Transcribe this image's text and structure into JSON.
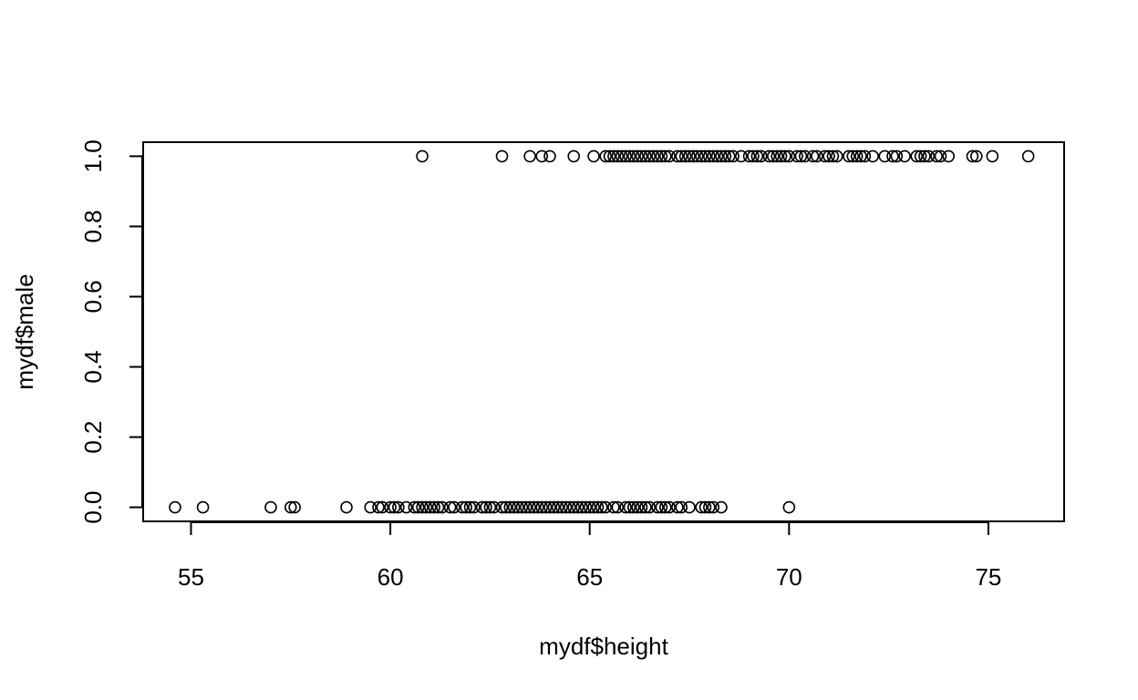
{
  "chart_data": {
    "type": "scatter",
    "title": "",
    "xlabel": "mydf$height",
    "ylabel": "mydf$male",
    "xlim": [
      53.8,
      76.9
    ],
    "ylim": [
      -0.04,
      1.04
    ],
    "x_ticks": [
      55,
      60,
      65,
      70,
      75
    ],
    "x_tick_labels": [
      "55",
      "60",
      "65",
      "70",
      "75"
    ],
    "y_ticks": [
      0.0,
      0.2,
      0.4,
      0.6,
      0.8,
      1.0
    ],
    "y_tick_labels": [
      "0.0",
      "0.2",
      "0.4",
      "0.6",
      "0.8",
      "1.0"
    ],
    "grid": false,
    "legend": "none",
    "marker": "open-circle",
    "colors": {
      "marker": "#000000",
      "axis": "#000000",
      "background": "#ffffff"
    },
    "series": [
      {
        "y": 0,
        "x": [
          54.6,
          55.3,
          57.0,
          57.5,
          57.6,
          58.9,
          59.5,
          59.7,
          59.8,
          60.0,
          60.1,
          60.2,
          60.4,
          60.6,
          60.7,
          60.8,
          60.9,
          61.0,
          61.1,
          61.2,
          61.3,
          61.5,
          61.6,
          61.8,
          61.9,
          62.0,
          62.1,
          62.3,
          62.4,
          62.5,
          62.6,
          62.8,
          62.9,
          63.0,
          63.1,
          63.2,
          63.3,
          63.4,
          63.5,
          63.6,
          63.7,
          63.8,
          63.9,
          64.0,
          64.1,
          64.2,
          64.3,
          64.4,
          64.5,
          64.6,
          64.7,
          64.8,
          64.9,
          65.0,
          65.1,
          65.2,
          65.3,
          65.4,
          65.6,
          65.7,
          65.9,
          66.0,
          66.1,
          66.2,
          66.3,
          66.4,
          66.5,
          66.7,
          66.8,
          66.9,
          67.0,
          67.2,
          67.3,
          67.5,
          67.8,
          67.9,
          68.0,
          68.1,
          68.3,
          70.0
        ]
      },
      {
        "y": 1,
        "x": [
          60.8,
          62.8,
          63.5,
          63.8,
          64.0,
          64.6,
          65.1,
          65.4,
          65.5,
          65.6,
          65.7,
          65.8,
          65.9,
          66.0,
          66.1,
          66.2,
          66.3,
          66.4,
          66.5,
          66.6,
          66.7,
          66.8,
          66.9,
          67.0,
          67.2,
          67.3,
          67.4,
          67.5,
          67.6,
          67.7,
          67.8,
          67.9,
          68.0,
          68.1,
          68.2,
          68.3,
          68.4,
          68.5,
          68.6,
          68.8,
          69.0,
          69.1,
          69.2,
          69.3,
          69.5,
          69.6,
          69.7,
          69.8,
          69.9,
          70.0,
          70.2,
          70.3,
          70.4,
          70.6,
          70.7,
          70.9,
          71.0,
          71.1,
          71.2,
          71.5,
          71.6,
          71.7,
          71.8,
          71.9,
          72.1,
          72.4,
          72.6,
          72.7,
          72.9,
          73.2,
          73.3,
          73.4,
          73.5,
          73.7,
          73.8,
          74.0,
          74.6,
          74.7,
          75.1,
          76.0
        ]
      }
    ]
  }
}
